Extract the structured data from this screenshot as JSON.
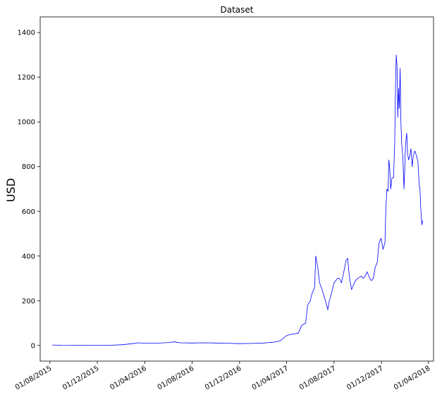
{
  "chart_data": {
    "type": "line",
    "title": "Dataset",
    "xlabel": "",
    "ylabel": "USD",
    "x_is_date": true,
    "xlim": [
      "2015-07-07",
      "2018-04-14"
    ],
    "ylim": [
      -70,
      1470
    ],
    "grid": false,
    "legend": "none",
    "colors": {
      "line": "#0000ff",
      "axes": "#000000",
      "background": "#ffffff"
    },
    "xticks": [
      "2015-08-01",
      "2015-12-01",
      "2016-04-01",
      "2016-08-01",
      "2016-12-01",
      "2017-04-01",
      "2017-08-01",
      "2017-12-01",
      "2018-04-01"
    ],
    "xtick_labels": [
      "01/08/2015",
      "01/12/2015",
      "01/04/2016",
      "01/08/2016",
      "01/12/2016",
      "01/04/2017",
      "01/08/2017",
      "01/12/2017",
      "01/04/2018"
    ],
    "yticks": [
      0,
      200,
      400,
      600,
      800,
      1000,
      1200,
      1400
    ],
    "ytick_labels": [
      "0",
      "200",
      "400",
      "600",
      "800",
      "1000",
      "1200",
      "1400"
    ],
    "series": [
      {
        "x": [
          "2015-08-07",
          "2015-09-01",
          "2015-10-01",
          "2015-11-01",
          "2015-12-01",
          "2016-01-01",
          "2016-02-01",
          "2016-03-01",
          "2016-03-15",
          "2016-04-01",
          "2016-05-01",
          "2016-06-01",
          "2016-06-17",
          "2016-07-01",
          "2016-08-01",
          "2016-09-01",
          "2016-10-01",
          "2016-11-01",
          "2016-12-01",
          "2017-01-01",
          "2017-02-01",
          "2017-03-01",
          "2017-03-15",
          "2017-04-01",
          "2017-04-15",
          "2017-05-01",
          "2017-05-10",
          "2017-05-15",
          "2017-05-20",
          "2017-05-25",
          "2017-06-01",
          "2017-06-05",
          "2017-06-12",
          "2017-06-15",
          "2017-06-20",
          "2017-06-25",
          "2017-07-01",
          "2017-07-10",
          "2017-07-16",
          "2017-07-20",
          "2017-07-25",
          "2017-08-01",
          "2017-08-10",
          "2017-08-15",
          "2017-08-20",
          "2017-08-25",
          "2017-09-01",
          "2017-09-05",
          "2017-09-10",
          "2017-09-15",
          "2017-09-20",
          "2017-09-25",
          "2017-10-01",
          "2017-10-10",
          "2017-10-15",
          "2017-10-20",
          "2017-10-25",
          "2017-11-01",
          "2017-11-05",
          "2017-11-10",
          "2017-11-15",
          "2017-11-20",
          "2017-11-25",
          "2017-11-30",
          "2017-12-05",
          "2017-12-10",
          "2017-12-12",
          "2017-12-15",
          "2017-12-18",
          "2017-12-20",
          "2017-12-22",
          "2017-12-25",
          "2017-12-28",
          "2018-01-01",
          "2018-01-04",
          "2018-01-06",
          "2018-01-08",
          "2018-01-10",
          "2018-01-12",
          "2018-01-14",
          "2018-01-16",
          "2018-01-18",
          "2018-01-20",
          "2018-01-22",
          "2018-01-25",
          "2018-01-28",
          "2018-02-01",
          "2018-02-04",
          "2018-02-06",
          "2018-02-09",
          "2018-02-12",
          "2018-02-15",
          "2018-02-18",
          "2018-02-21",
          "2018-02-25",
          "2018-03-01",
          "2018-03-05",
          "2018-03-08",
          "2018-03-10",
          "2018-03-12",
          "2018-03-14",
          "2018-03-15",
          "2018-03-17"
        ],
        "values": [
          2,
          1,
          0.5,
          0.8,
          1,
          1,
          3,
          8,
          12,
          10,
          10,
          13,
          16,
          12,
          11,
          12,
          11,
          10,
          8,
          9,
          11,
          15,
          20,
          45,
          50,
          55,
          90,
          95,
          100,
          180,
          200,
          230,
          260,
          400,
          350,
          280,
          250,
          200,
          160,
          200,
          230,
          280,
          300,
          300,
          280,
          320,
          380,
          390,
          300,
          250,
          270,
          290,
          300,
          310,
          300,
          310,
          330,
          300,
          290,
          300,
          350,
          370,
          460,
          480,
          430,
          460,
          600,
          700,
          690,
          830,
          800,
          700,
          750,
          750,
          900,
          1150,
          1300,
          1250,
          1020,
          1150,
          1060,
          1240,
          1000,
          900,
          850,
          700,
          900,
          950,
          860,
          830,
          850,
          880,
          800,
          850,
          870,
          850,
          820,
          720,
          700,
          620,
          560,
          540,
          560
        ]
      }
    ]
  }
}
